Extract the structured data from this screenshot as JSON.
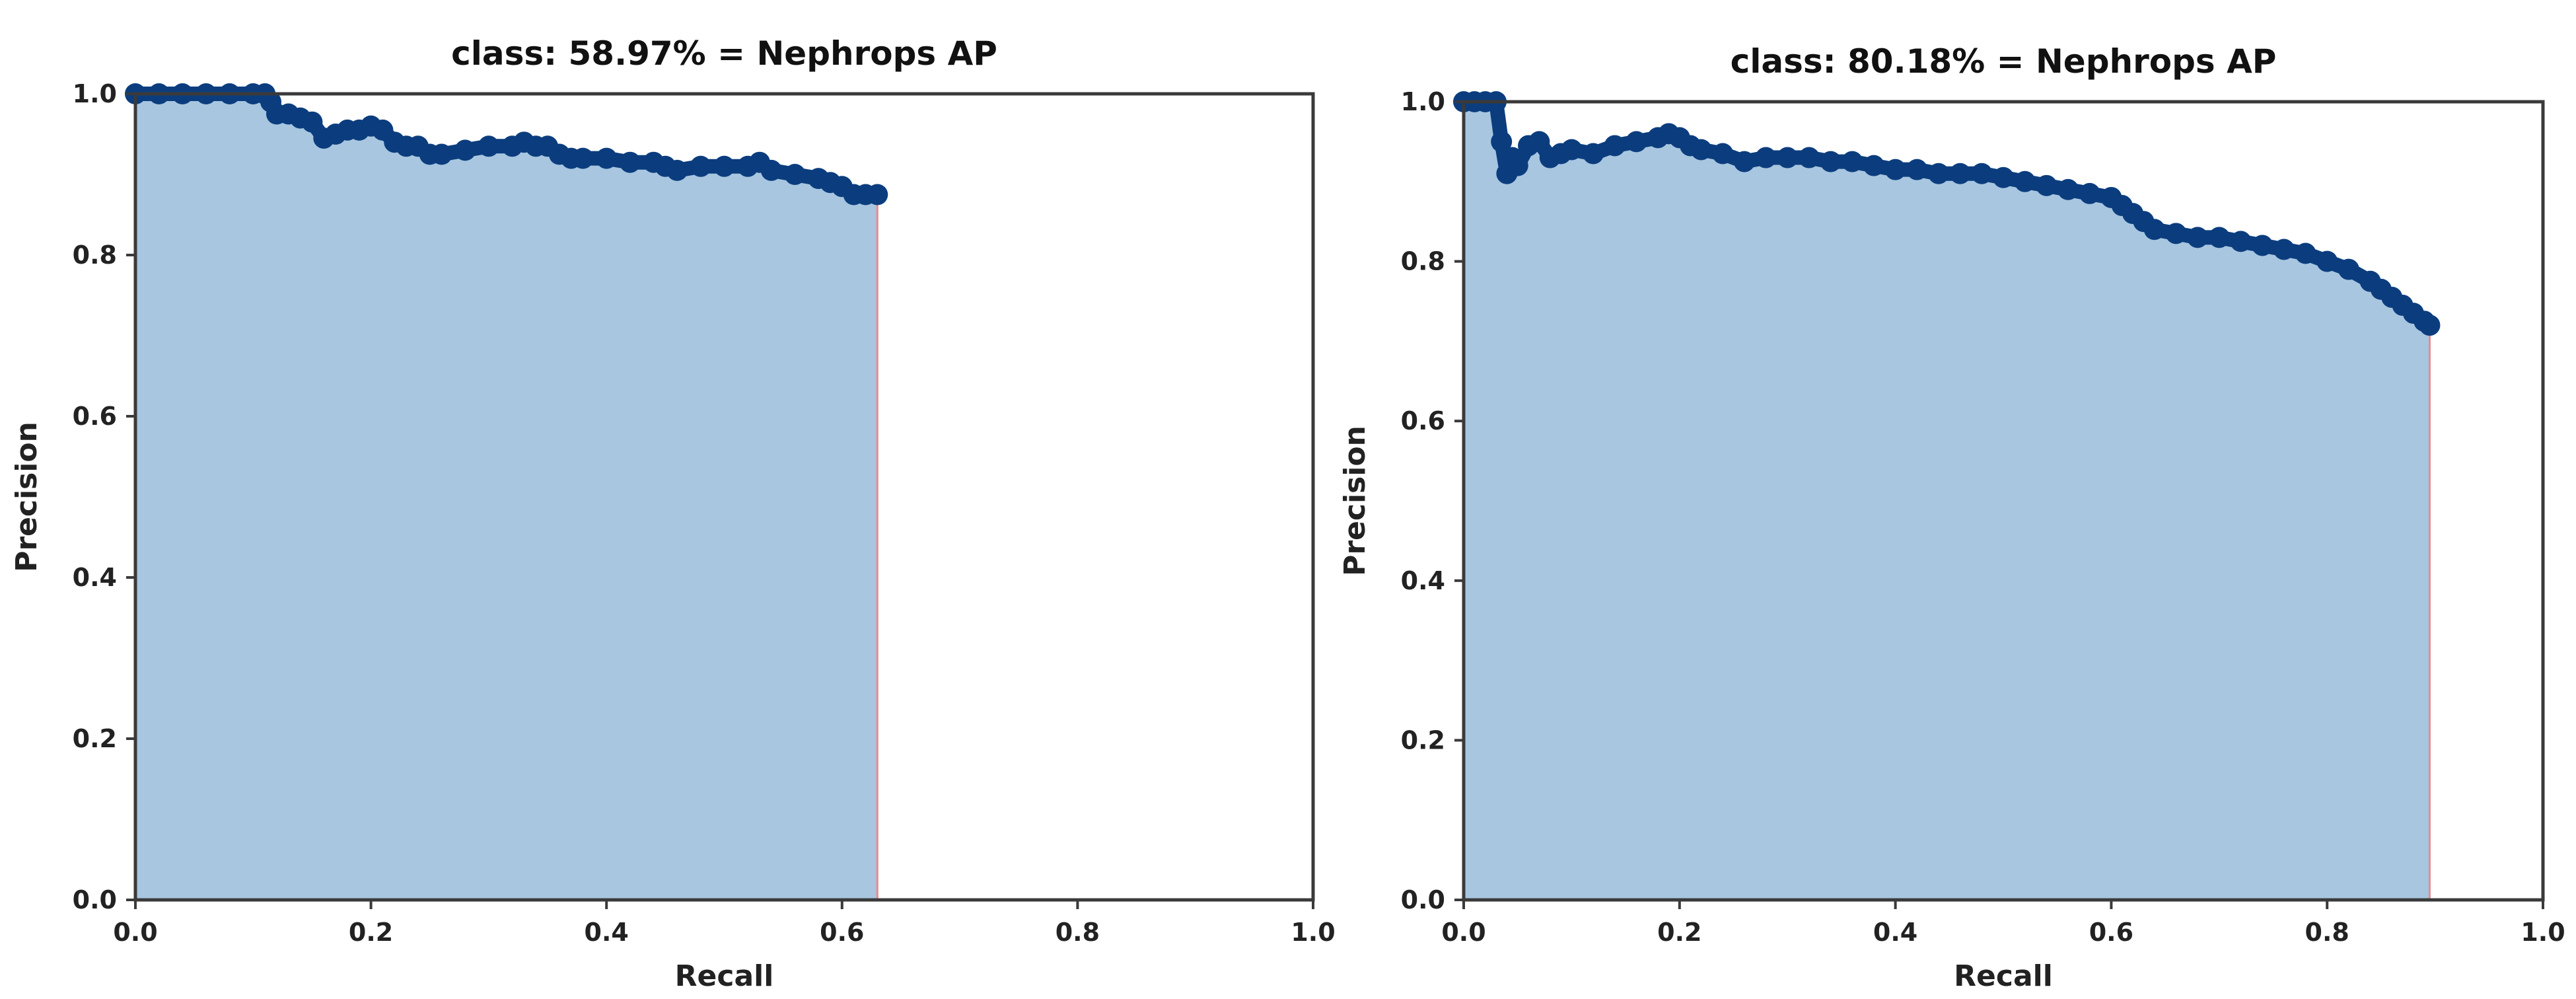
{
  "colors": {
    "fill": "#a8c6e0",
    "points": "#0b3d7e",
    "edge": "#e88a8a",
    "frame": "#3a3a3a"
  },
  "chart_data": [
    {
      "type": "area",
      "title": "class: 58.97% = Nephrops AP",
      "xlabel": "Recall",
      "ylabel": "Precision",
      "xlim": [
        0.0,
        1.0
      ],
      "ylim": [
        0.0,
        1.0
      ],
      "xticks": [
        "0.0",
        "0.2",
        "0.4",
        "0.6",
        "0.8",
        "1.0"
      ],
      "yticks": [
        "0.0",
        "0.2",
        "0.4",
        "0.6",
        "0.8",
        "1.0"
      ],
      "grid": false,
      "legend": "none",
      "x": [
        0.0,
        0.02,
        0.04,
        0.06,
        0.08,
        0.1,
        0.11,
        0.115,
        0.12,
        0.13,
        0.14,
        0.15,
        0.16,
        0.17,
        0.18,
        0.19,
        0.2,
        0.21,
        0.22,
        0.23,
        0.24,
        0.25,
        0.26,
        0.28,
        0.3,
        0.32,
        0.33,
        0.34,
        0.35,
        0.36,
        0.37,
        0.38,
        0.4,
        0.42,
        0.44,
        0.45,
        0.46,
        0.48,
        0.5,
        0.52,
        0.53,
        0.54,
        0.56,
        0.58,
        0.59,
        0.6,
        0.61,
        0.62,
        0.63
      ],
      "y": [
        1.0,
        1.0,
        1.0,
        1.0,
        1.0,
        1.0,
        1.0,
        0.99,
        0.975,
        0.975,
        0.97,
        0.965,
        0.945,
        0.95,
        0.955,
        0.955,
        0.96,
        0.955,
        0.94,
        0.935,
        0.935,
        0.925,
        0.925,
        0.93,
        0.935,
        0.935,
        0.94,
        0.935,
        0.935,
        0.925,
        0.92,
        0.92,
        0.92,
        0.915,
        0.915,
        0.91,
        0.905,
        0.91,
        0.91,
        0.91,
        0.915,
        0.905,
        0.9,
        0.895,
        0.89,
        0.885,
        0.875,
        0.875,
        0.875
      ]
    },
    {
      "type": "area",
      "title": "class: 80.18% = Nephrops AP",
      "xlabel": "Recall",
      "ylabel": "Precision",
      "xlim": [
        0.0,
        1.0
      ],
      "ylim": [
        0.0,
        1.0
      ],
      "xticks": [
        "0.0",
        "0.2",
        "0.4",
        "0.6",
        "0.8",
        "1.0"
      ],
      "yticks": [
        "0.0",
        "0.2",
        "0.4",
        "0.6",
        "0.8",
        "1.0"
      ],
      "grid": false,
      "legend": "none",
      "x": [
        0.0,
        0.01,
        0.02,
        0.03,
        0.035,
        0.04,
        0.045,
        0.05,
        0.06,
        0.07,
        0.08,
        0.09,
        0.1,
        0.12,
        0.14,
        0.16,
        0.18,
        0.19,
        0.2,
        0.21,
        0.22,
        0.24,
        0.26,
        0.28,
        0.3,
        0.32,
        0.34,
        0.36,
        0.38,
        0.4,
        0.42,
        0.44,
        0.46,
        0.48,
        0.5,
        0.52,
        0.54,
        0.56,
        0.58,
        0.6,
        0.61,
        0.62,
        0.63,
        0.64,
        0.66,
        0.68,
        0.7,
        0.72,
        0.74,
        0.76,
        0.78,
        0.8,
        0.82,
        0.84,
        0.85,
        0.86,
        0.87,
        0.88,
        0.89,
        0.895
      ],
      "y": [
        1.0,
        1.0,
        1.0,
        1.0,
        0.95,
        0.91,
        0.93,
        0.92,
        0.945,
        0.95,
        0.93,
        0.935,
        0.94,
        0.935,
        0.945,
        0.95,
        0.955,
        0.96,
        0.955,
        0.945,
        0.94,
        0.935,
        0.925,
        0.93,
        0.93,
        0.93,
        0.925,
        0.925,
        0.92,
        0.915,
        0.915,
        0.91,
        0.91,
        0.91,
        0.905,
        0.9,
        0.895,
        0.89,
        0.885,
        0.88,
        0.87,
        0.86,
        0.85,
        0.84,
        0.835,
        0.83,
        0.83,
        0.825,
        0.82,
        0.815,
        0.81,
        0.8,
        0.79,
        0.775,
        0.765,
        0.755,
        0.745,
        0.735,
        0.725,
        0.72
      ]
    }
  ]
}
